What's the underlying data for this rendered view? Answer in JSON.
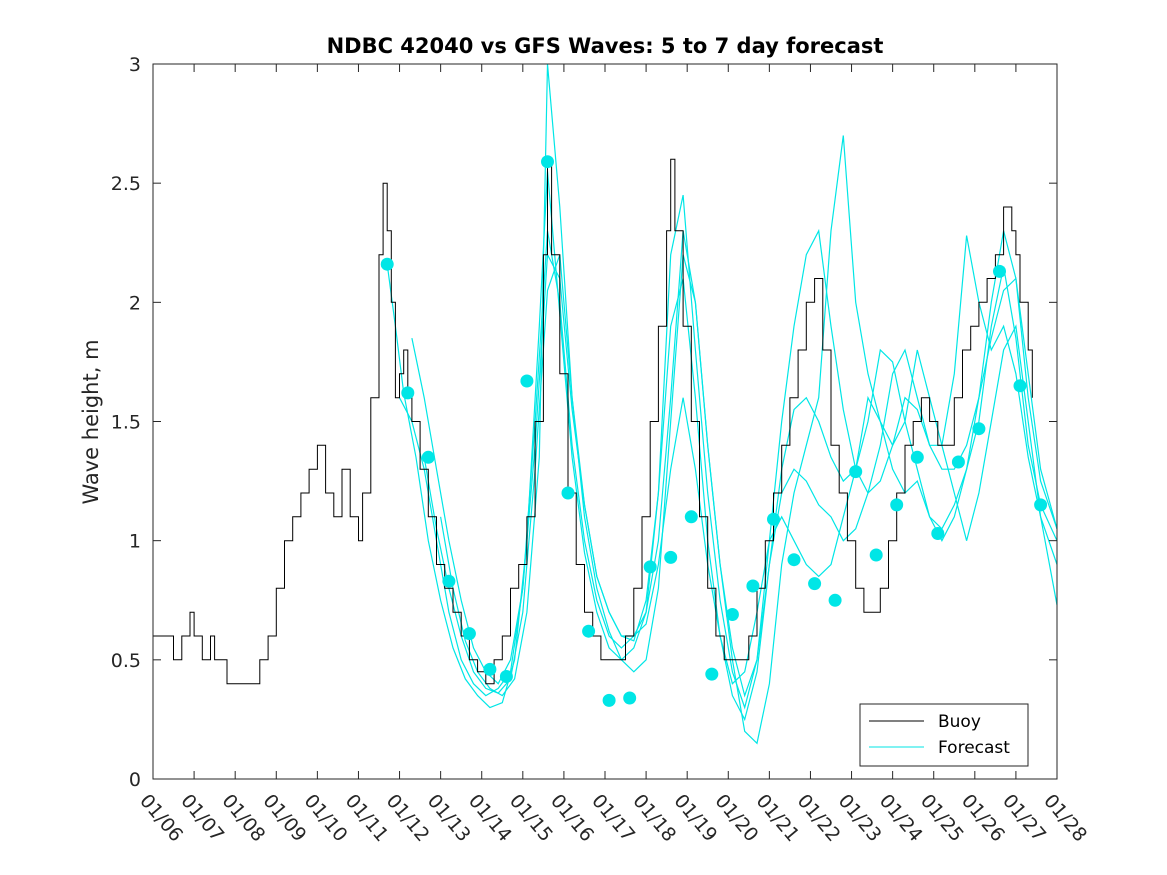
{
  "chart_data": {
    "type": "line",
    "title": "NDBC 42040 vs GFS Waves: 5 to 7 day forecast",
    "xlabel": "",
    "ylabel": "Wave height, m",
    "ylim": [
      0,
      3
    ],
    "xlim_days": [
      6,
      28
    ],
    "y_ticks": [
      "0",
      "0.5",
      "1",
      "1.5",
      "2",
      "2.5",
      "3"
    ],
    "x_ticks": [
      "01/06",
      "01/07",
      "01/08",
      "01/09",
      "01/10",
      "01/11",
      "01/12",
      "01/13",
      "01/14",
      "01/15",
      "01/16",
      "01/17",
      "01/18",
      "01/19",
      "01/20",
      "01/21",
      "01/22",
      "01/23",
      "01/24",
      "01/25",
      "01/26",
      "01/27",
      "01/28"
    ],
    "legend": [
      {
        "label": "Buoy",
        "color": "#000000"
      },
      {
        "label": "Forecast",
        "color": "#00e6e6"
      }
    ],
    "colors": {
      "buoy": "#000000",
      "forecast": "#00e6e6",
      "marker": "#00e6e6"
    },
    "series": [
      {
        "name": "Buoy",
        "x": [
          6.0,
          6.3,
          6.5,
          6.7,
          6.9,
          7.0,
          7.2,
          7.4,
          7.5,
          7.6,
          7.8,
          8.0,
          8.2,
          8.4,
          8.6,
          8.8,
          9.0,
          9.2,
          9.4,
          9.6,
          9.8,
          10.0,
          10.2,
          10.4,
          10.6,
          10.8,
          11.0,
          11.1,
          11.3,
          11.5,
          11.6,
          11.7,
          11.8,
          11.9,
          12.0,
          12.1,
          12.2,
          12.3,
          12.5,
          12.7,
          12.9,
          13.1,
          13.3,
          13.5,
          13.7,
          13.9,
          14.1,
          14.3,
          14.5,
          14.7,
          14.9,
          15.1,
          15.3,
          15.5,
          15.6,
          15.7,
          15.9,
          16.1,
          16.3,
          16.5,
          16.7,
          16.9,
          17.1,
          17.3,
          17.5,
          17.7,
          17.9,
          18.1,
          18.3,
          18.5,
          18.6,
          18.7,
          18.9,
          19.1,
          19.3,
          19.5,
          19.7,
          19.9,
          20.1,
          20.3,
          20.5,
          20.7,
          20.9,
          21.1,
          21.3,
          21.5,
          21.7,
          21.9,
          22.1,
          22.3,
          22.5,
          22.7,
          22.9,
          23.1,
          23.3,
          23.5,
          23.7,
          23.9,
          24.1,
          24.3,
          24.5,
          24.7,
          24.9,
          25.1,
          25.3,
          25.5,
          25.7,
          25.9,
          26.1,
          26.3,
          26.5,
          26.7,
          26.9,
          27.0,
          27.1,
          27.3,
          27.4
        ],
        "values": [
          0.6,
          0.6,
          0.5,
          0.6,
          0.7,
          0.6,
          0.5,
          0.6,
          0.5,
          0.5,
          0.4,
          0.4,
          0.4,
          0.4,
          0.5,
          0.6,
          0.8,
          1.0,
          1.1,
          1.2,
          1.3,
          1.4,
          1.2,
          1.1,
          1.3,
          1.1,
          1.0,
          1.2,
          1.6,
          2.2,
          2.5,
          2.3,
          2.0,
          1.6,
          1.7,
          1.8,
          1.6,
          1.5,
          1.3,
          1.1,
          0.9,
          0.8,
          0.7,
          0.6,
          0.5,
          0.45,
          0.4,
          0.5,
          0.6,
          0.8,
          0.9,
          1.1,
          1.5,
          2.2,
          2.6,
          2.2,
          1.7,
          1.2,
          0.9,
          0.7,
          0.6,
          0.5,
          0.5,
          0.5,
          0.6,
          0.8,
          1.1,
          1.5,
          1.9,
          2.3,
          2.6,
          2.3,
          1.9,
          1.5,
          1.1,
          0.8,
          0.6,
          0.5,
          0.5,
          0.5,
          0.6,
          0.8,
          1.0,
          1.2,
          1.4,
          1.6,
          1.8,
          2.0,
          2.1,
          1.8,
          1.4,
          1.2,
          1.0,
          0.8,
          0.7,
          0.7,
          0.8,
          1.0,
          1.2,
          1.4,
          1.5,
          1.6,
          1.5,
          1.4,
          1.4,
          1.6,
          1.8,
          1.9,
          2.0,
          2.1,
          2.2,
          2.4,
          2.3,
          2.2,
          2.0,
          1.8,
          1.6
        ]
      },
      {
        "name": "Forecast",
        "lines": [
          {
            "x": [
              11.7,
              11.9,
              12.1,
              12.4,
              12.7,
              13.0,
              13.3,
              13.6,
              13.9,
              14.2,
              14.5,
              14.8,
              15.1,
              15.4,
              15.6,
              15.9,
              16.2,
              16.5,
              16.8,
              17.1,
              17.4,
              17.7,
              18.0,
              18.3,
              18.6,
              18.9,
              19.2,
              19.5,
              19.8,
              20.1,
              20.4,
              20.7,
              21.0,
              21.3,
              21.6,
              21.9,
              22.2,
              22.5,
              22.8,
              23.1,
              23.4,
              23.7,
              24.0,
              24.3,
              24.6,
              24.9,
              25.2,
              25.5,
              25.8,
              26.1,
              26.4,
              26.7,
              27.0,
              27.3,
              27.6,
              28.0
            ],
            "y": [
              2.16,
              1.9,
              1.62,
              1.35,
              1.0,
              0.75,
              0.55,
              0.42,
              0.35,
              0.3,
              0.32,
              0.5,
              1.0,
              1.9,
              2.55,
              1.95,
              1.35,
              0.95,
              0.7,
              0.55,
              0.5,
              0.55,
              0.7,
              1.2,
              1.9,
              2.1,
              1.6,
              1.0,
              0.6,
              0.4,
              0.45,
              0.7,
              1.0,
              1.1,
              1.0,
              0.9,
              0.85,
              0.9,
              1.1,
              1.3,
              1.6,
              1.5,
              1.3,
              1.2,
              1.25,
              1.1,
              1.05,
              1.15,
              1.3,
              1.5,
              1.9,
              2.15,
              1.85,
              1.4,
              1.15,
              1.0
            ]
          },
          {
            "x": [
              12.0,
              12.3,
              12.6,
              12.9,
              13.2,
              13.5,
              13.8,
              14.1,
              14.4,
              14.7,
              15.0,
              15.3,
              15.6,
              15.9,
              16.2,
              16.5,
              16.8,
              17.1,
              17.4,
              17.7,
              18.0,
              18.3,
              18.6,
              18.9,
              19.2,
              19.5,
              19.8,
              20.1,
              20.4,
              20.7,
              21.0,
              21.3,
              21.6,
              21.9,
              22.2,
              22.5,
              22.8,
              23.1,
              23.4,
              23.7,
              24.0,
              24.3,
              24.6,
              24.9,
              25.2,
              25.5,
              25.8,
              26.1,
              26.4,
              26.7,
              27.0,
              27.3,
              27.6,
              28.0
            ],
            "y": [
              1.6,
              1.5,
              1.3,
              1.0,
              0.7,
              0.5,
              0.4,
              0.35,
              0.38,
              0.45,
              0.8,
              1.5,
              2.3,
              2.0,
              1.4,
              1.0,
              0.75,
              0.6,
              0.55,
              0.6,
              0.65,
              0.9,
              1.3,
              1.6,
              1.3,
              0.9,
              0.6,
              0.35,
              0.25,
              0.45,
              0.9,
              1.2,
              1.3,
              1.25,
              1.15,
              1.1,
              1.0,
              1.05,
              1.2,
              1.4,
              1.7,
              1.8,
              1.6,
              1.4,
              1.3,
              1.3,
              1.4,
              1.6,
              1.85,
              2.05,
              2.1,
              1.7,
              1.3,
              1.05
            ]
          },
          {
            "x": [
              12.3,
              12.6,
              12.9,
              13.2,
              13.5,
              13.8,
              14.1,
              14.4,
              14.7,
              15.0,
              15.3,
              15.6,
              15.9,
              16.2,
              16.5,
              16.8,
              17.1,
              17.4,
              17.7,
              18.0,
              18.3,
              18.6,
              18.9,
              19.2,
              19.5,
              19.8,
              20.1,
              20.4,
              20.7,
              21.0,
              21.3,
              21.6,
              21.9,
              22.2,
              22.5,
              22.8,
              23.1,
              23.4,
              23.7,
              24.0,
              24.3,
              24.6,
              24.9,
              25.2,
              25.5,
              25.8,
              26.1,
              26.4,
              26.7,
              27.0,
              27.3,
              27.6,
              28.0
            ],
            "y": [
              1.85,
              1.6,
              1.3,
              1.0,
              0.75,
              0.55,
              0.45,
              0.4,
              0.5,
              0.8,
              1.4,
              2.2,
              2.1,
              1.55,
              1.15,
              0.85,
              0.7,
              0.6,
              0.6,
              0.7,
              1.0,
              1.6,
              2.3,
              2.0,
              1.4,
              0.9,
              0.55,
              0.35,
              0.5,
              0.9,
              1.3,
              1.55,
              1.6,
              1.5,
              1.35,
              1.25,
              1.3,
              1.5,
              1.8,
              1.75,
              1.5,
              1.3,
              1.1,
              1.0,
              1.1,
              1.3,
              1.6,
              2.0,
              2.3,
              2.1,
              1.6,
              1.25,
              1.05
            ]
          },
          {
            "x": [
              12.6,
              12.9,
              13.2,
              13.5,
              13.8,
              14.1,
              14.4,
              14.7,
              15.0,
              15.3,
              15.6,
              15.9,
              16.2,
              16.5,
              16.8,
              17.1,
              17.4,
              17.7,
              18.0,
              18.3,
              18.6,
              18.9,
              19.2,
              19.5,
              19.8,
              20.1,
              20.4,
              20.7,
              21.0,
              21.3,
              21.6,
              21.9,
              22.2,
              22.5,
              22.8,
              23.1,
              23.4,
              23.7,
              24.0,
              24.3,
              24.6,
              24.9,
              25.2,
              25.5,
              25.8,
              26.1,
              26.4,
              26.7,
              27.0,
              27.3,
              27.6,
              28.0
            ],
            "y": [
              1.35,
              1.05,
              0.8,
              0.6,
              0.45,
              0.38,
              0.36,
              0.42,
              0.7,
              1.3,
              2.05,
              2.2,
              1.6,
              1.15,
              0.85,
              0.7,
              0.6,
              0.58,
              0.75,
              1.2,
              2.2,
              2.45,
              1.8,
              1.2,
              0.75,
              0.45,
              0.3,
              0.5,
              1.0,
              1.5,
              1.9,
              2.2,
              2.3,
              1.9,
              1.55,
              1.3,
              1.2,
              1.25,
              1.4,
              1.6,
              1.55,
              1.4,
              1.4,
              1.7,
              2.28,
              2.0,
              1.8,
              1.9,
              1.7,
              1.35,
              1.1,
              0.9
            ]
          },
          {
            "x": [
              13.0,
              13.3,
              13.6,
              13.9,
              14.2,
              14.5,
              14.8,
              15.1,
              15.4,
              15.6,
              15.9,
              16.2,
              16.5,
              16.8,
              17.1,
              17.4,
              17.7,
              18.0,
              18.3,
              18.6,
              18.9,
              19.2,
              19.5,
              19.8,
              20.1,
              20.4,
              20.7,
              21.0,
              21.3,
              21.6,
              21.9,
              22.2,
              22.5,
              22.8,
              23.1,
              23.4,
              23.7,
              24.0,
              24.3,
              24.6,
              24.9,
              25.2,
              25.5,
              25.8,
              26.1,
              26.4,
              26.7,
              27.0,
              27.3,
              27.6,
              28.0
            ],
            "y": [
              1.1,
              0.8,
              0.58,
              0.45,
              0.38,
              0.35,
              0.42,
              0.7,
              1.35,
              3.0,
              2.4,
              1.6,
              1.1,
              0.8,
              0.62,
              0.5,
              0.45,
              0.5,
              0.8,
              1.5,
              2.2,
              2.0,
              1.4,
              0.9,
              0.5,
              0.2,
              0.15,
              0.4,
              0.9,
              1.2,
              1.4,
              1.6,
              2.3,
              2.7,
              2.0,
              1.7,
              1.5,
              1.4,
              1.5,
              1.8,
              1.6,
              1.4,
              1.2,
              1.0,
              1.2,
              1.5,
              1.8,
              1.9,
              1.5,
              1.1,
              0.73
            ]
          }
        ],
        "markers": {
          "x": [
            11.7,
            12.2,
            12.7,
            13.2,
            13.7,
            14.2,
            14.6,
            15.1,
            15.6,
            16.1,
            16.6,
            17.1,
            17.6,
            18.1,
            18.6,
            19.1,
            19.6,
            20.1,
            20.6,
            21.1,
            21.6,
            22.1,
            22.6,
            23.1,
            23.6,
            24.1,
            24.6,
            25.1,
            25.6,
            26.1,
            26.6,
            27.1,
            27.6
          ],
          "y": [
            2.16,
            1.62,
            1.35,
            0.83,
            0.61,
            0.46,
            0.43,
            1.67,
            2.59,
            1.2,
            0.62,
            0.33,
            0.34,
            0.89,
            0.93,
            1.1,
            0.44,
            0.69,
            0.81,
            1.09,
            0.92,
            0.82,
            0.75,
            1.29,
            0.94,
            1.15,
            1.35,
            1.03,
            1.33,
            1.47,
            2.13,
            1.65,
            1.15
          ]
        }
      }
    ]
  }
}
